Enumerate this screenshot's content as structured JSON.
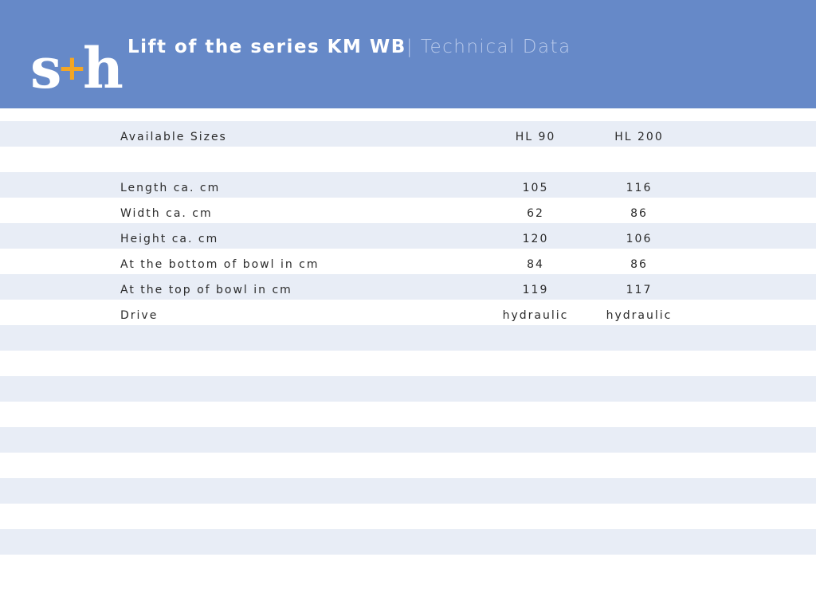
{
  "header": {
    "title_main": "Lift of the series KM WB",
    "title_separator": "| ",
    "title_sub": "Technical Data",
    "background_color": "#6689c8"
  },
  "logo": {
    "letter_left": "s",
    "letter_plus": "+",
    "letter_right": "h",
    "plus_color": "#f5a623",
    "text_color": "#ffffff"
  },
  "table": {
    "header_row": {
      "label": "Available Sizes",
      "col1": "HL 90",
      "col2": "HL 200"
    },
    "rows": [
      {
        "label": "Length ca. cm",
        "col1": "105",
        "col2": "116"
      },
      {
        "label": "Width ca. cm",
        "col1": "62",
        "col2": "86"
      },
      {
        "label": "Height ca. cm",
        "col1": "120",
        "col2": "106"
      },
      {
        "label": "At the bottom of bowl in cm",
        "col1": "84",
        "col2": "86"
      },
      {
        "label": "At the top of bowl in cm",
        "col1": "119",
        "col2": "117"
      },
      {
        "label": "Drive",
        "col1": "hydraulic",
        "col2": "hydraulic"
      }
    ],
    "band_color": "#e8edf6"
  }
}
